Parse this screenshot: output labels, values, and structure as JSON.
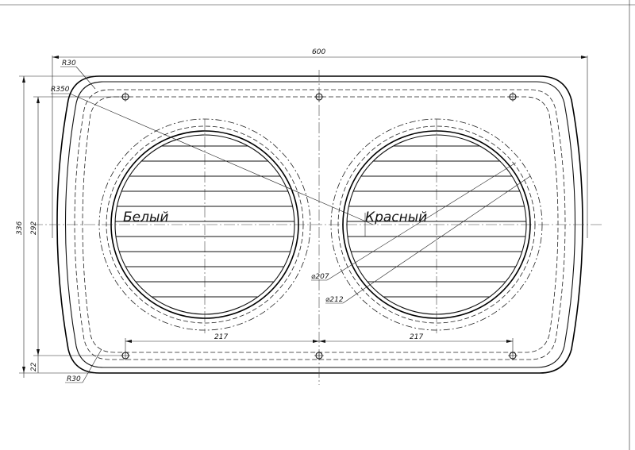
{
  "dimensions": {
    "overall_width": "600",
    "overall_height": "336",
    "inner_height": "292",
    "bottom_offset": "22",
    "hole_spacing_left": "217",
    "hole_spacing_right": "217",
    "corner_radius_top": "R30",
    "corner_radius_bottom": "R30",
    "side_arc_radius": "R350",
    "grille_diameter": "⌀207",
    "outer_diameter": "⌀212"
  },
  "labels": {
    "left_grille": "Белый",
    "right_grille": "Красный"
  }
}
